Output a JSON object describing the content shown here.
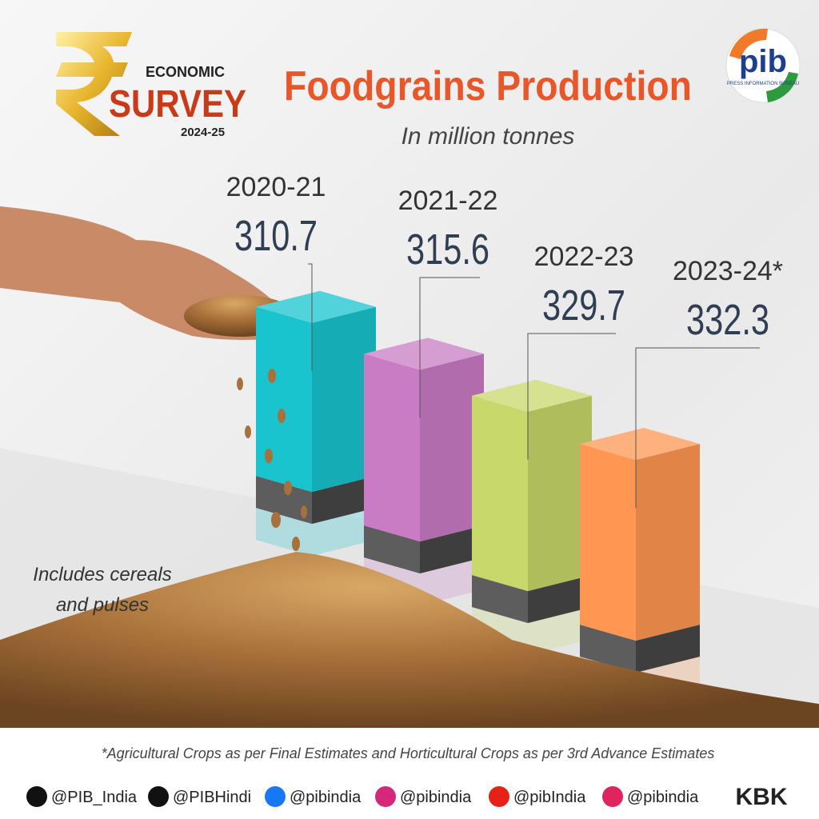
{
  "chart_data": {
    "type": "bar3d",
    "title": "Foodgrains Production",
    "subtitle": "In million tonnes",
    "categories": [
      "2020-21",
      "2021-22",
      "2022-23",
      "2023-24*"
    ],
    "values": [
      310.7,
      315.6,
      329.7,
      332.3
    ],
    "colors": [
      "#19c4cf",
      "#c97cc4",
      "#c9d86a",
      "#ff9752"
    ],
    "note": [
      "Includes cereals",
      "and pulses"
    ],
    "footnote": "*Agricultural Crops as per Final Estimates and Horticultural Crops as per 3rd Advance Estimates"
  },
  "logo": {
    "line1": "ECONOMIC",
    "line2": "SURVEY",
    "line3": "2024-25",
    "pib": "pib",
    "pib_sub": "PRESS INFORMATION BUREAU"
  },
  "footer": {
    "handles": [
      "@PIB_India",
      "@PIBHindi",
      "@pibindia",
      "@pibindia",
      "@pibIndia",
      "@pibindia"
    ],
    "credit": "KBK"
  }
}
